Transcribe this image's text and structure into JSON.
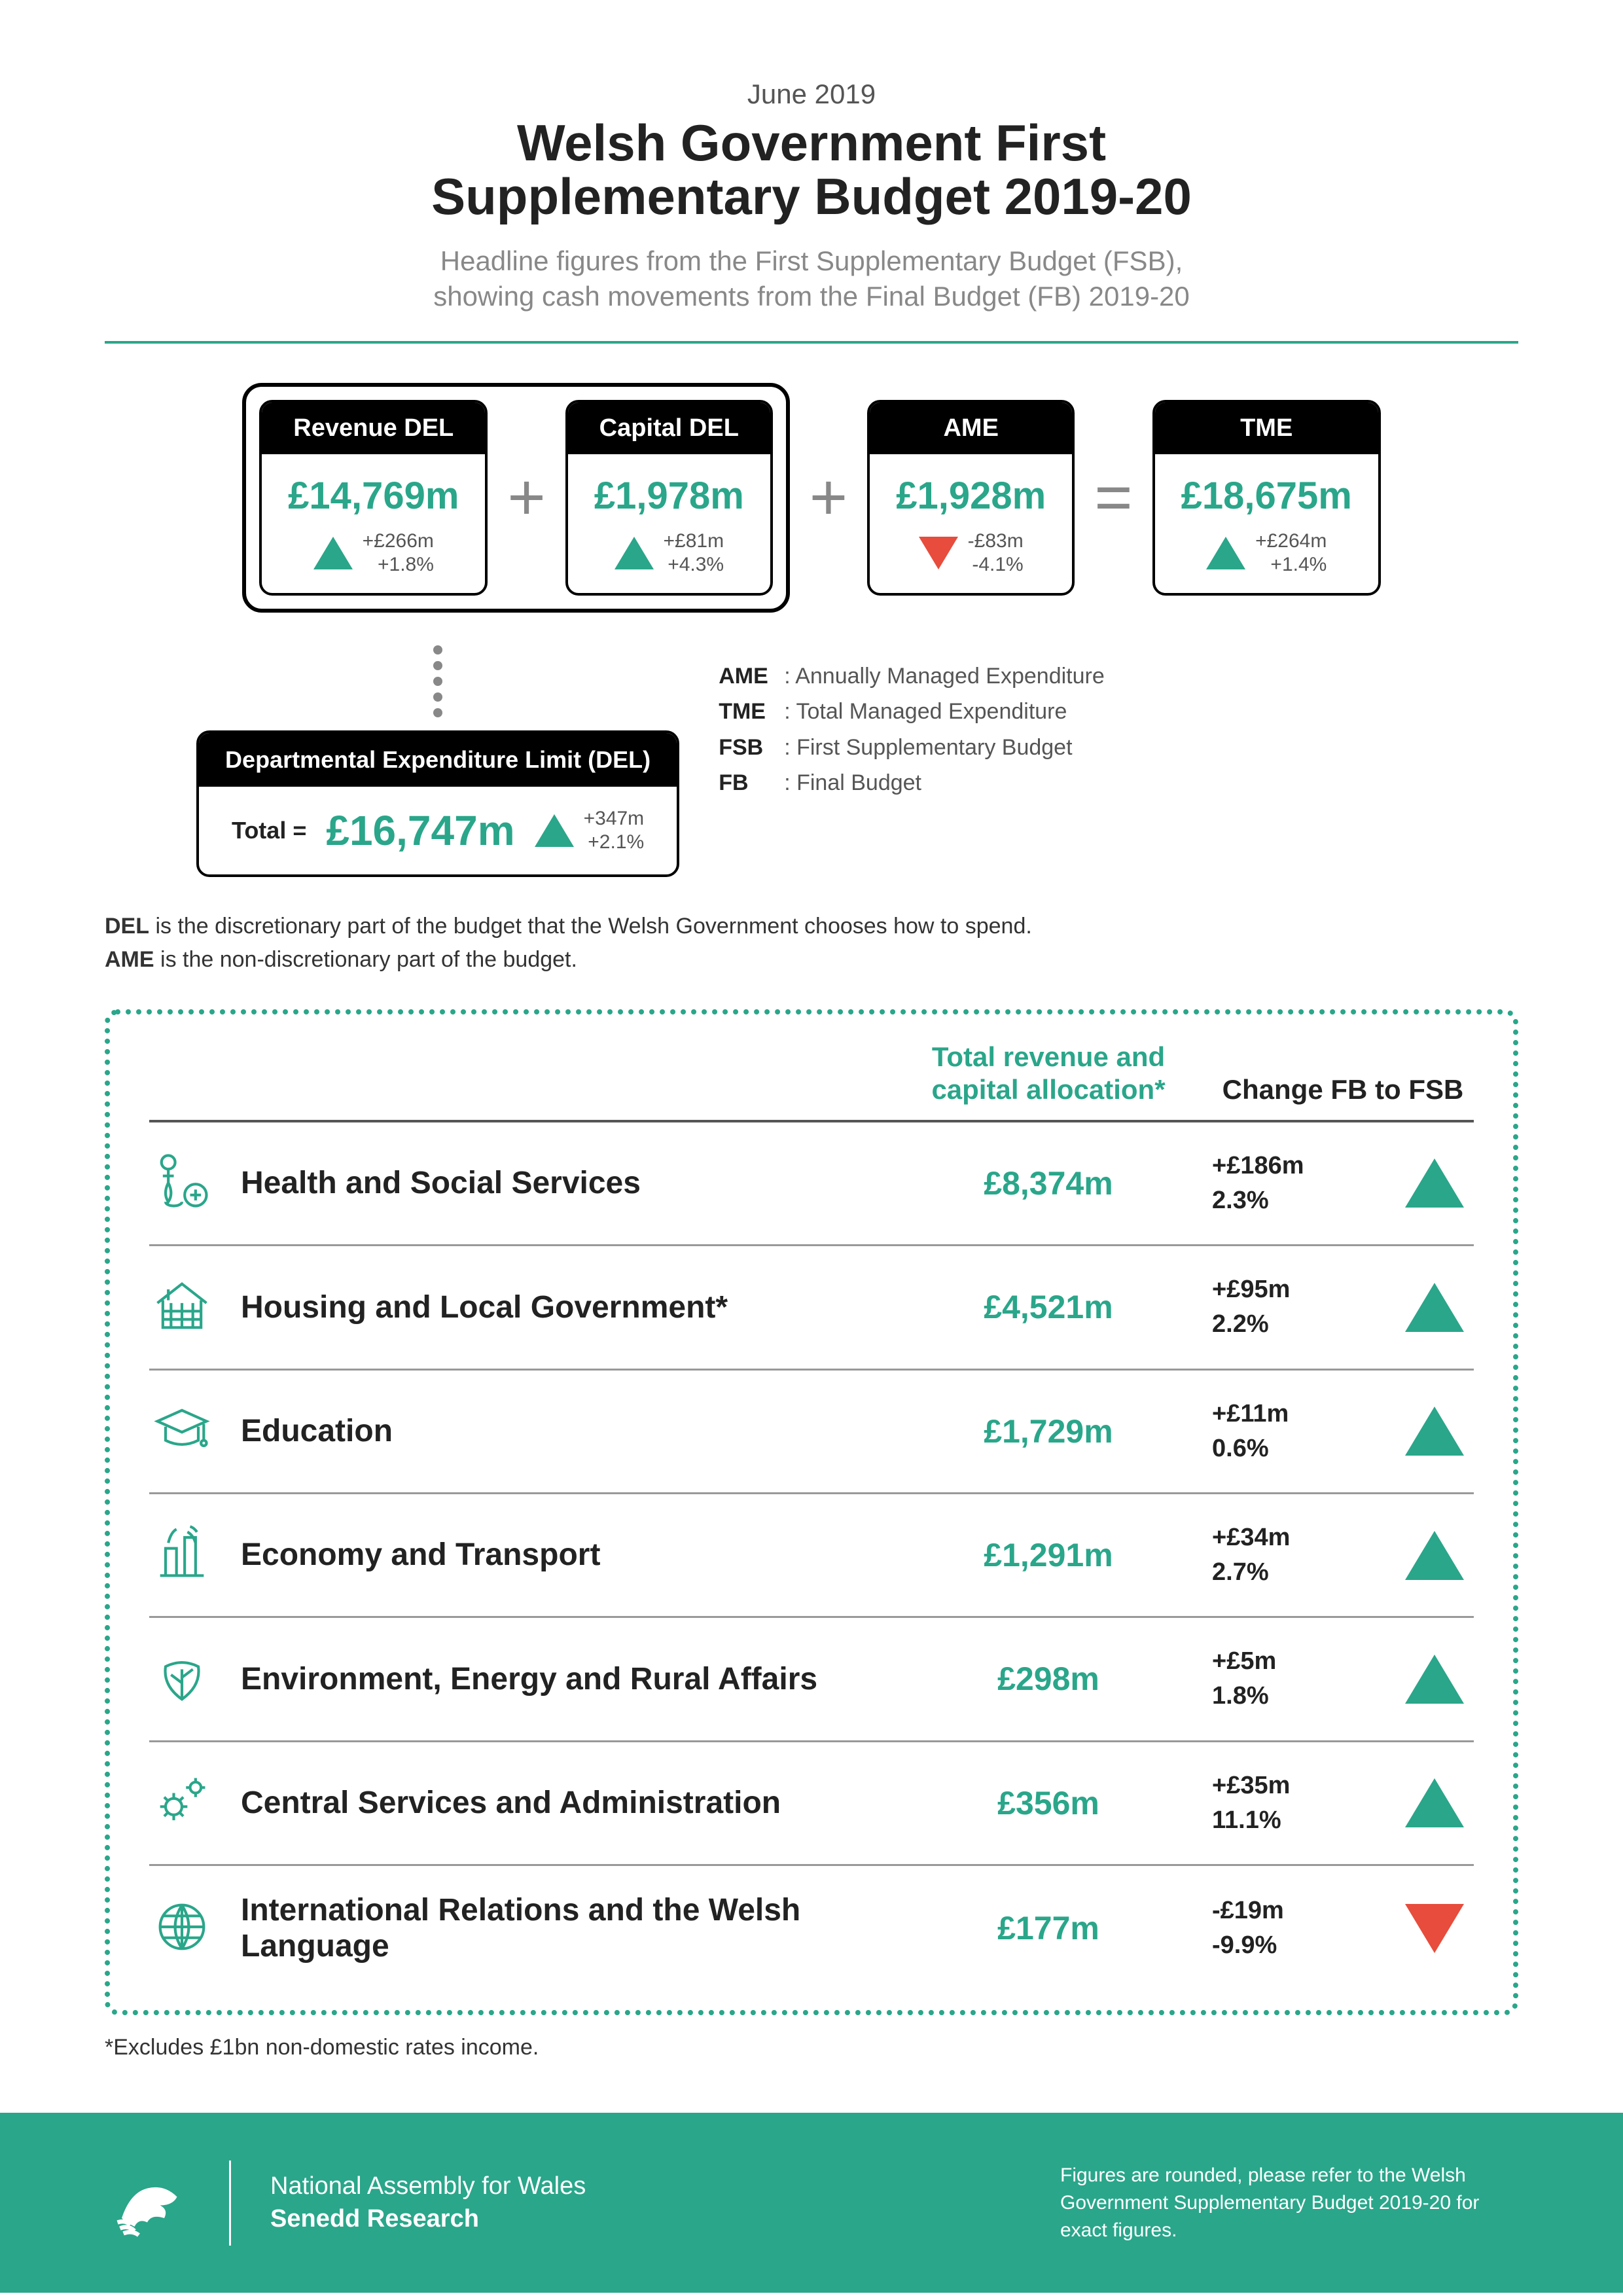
{
  "header": {
    "pretitle": "June 2019",
    "title_l1": "Welsh Government First",
    "title_l2": "Supplementary Budget 2019-20",
    "subtitle_l1": "Headline figures from the First Supplementary Budget (FSB),",
    "subtitle_l2": "showing cash movements from the Final Budget (FB) 2019-20"
  },
  "colors": {
    "teal": "#2aa68a",
    "red": "#e74c3c",
    "black": "#000000",
    "grey": "#888888"
  },
  "topboxes": {
    "revenue": {
      "label": "Revenue DEL",
      "amount": "£14,769m",
      "delta": "+£266m",
      "pct": "+1.8%",
      "dir": "up"
    },
    "capital": {
      "label": "Capital DEL",
      "amount": "£1,978m",
      "delta": "+£81m",
      "pct": "+4.3%",
      "dir": "up"
    },
    "ame": {
      "label": "AME",
      "amount": "£1,928m",
      "delta": "-£83m",
      "pct": "-4.1%",
      "dir": "down"
    },
    "tme": {
      "label": "TME",
      "amount": "£18,675m",
      "delta": "+£264m",
      "pct": "+1.4%",
      "dir": "up"
    }
  },
  "del": {
    "label": "Departmental Expenditure Limit (DEL)",
    "total_label": "Total =",
    "amount": "£16,747m",
    "delta": "+347m",
    "pct": "+2.1%"
  },
  "glossary": {
    "ame": "Annually Managed Expenditure",
    "tme": "Total Managed Expenditure",
    "fsb": "First Supplementary Budget",
    "fb": "Final Budget"
  },
  "notes": {
    "del": "DEL is the discretionary part of the budget that the Welsh Government chooses how to spend.",
    "ame": "AME is the non-discretionary part of the budget."
  },
  "table": {
    "head1": "Total revenue and capital allocation*",
    "head2": "Change FB to FSB",
    "rows": [
      {
        "name": "Health and Social Services",
        "alloc": "£8,374m",
        "delta": "+£186m",
        "pct": "2.3%",
        "dir": "up",
        "icon": "health"
      },
      {
        "name": "Housing and Local Government*",
        "alloc": "£4,521m",
        "delta": "+£95m",
        "pct": "2.2%",
        "dir": "up",
        "icon": "housing"
      },
      {
        "name": "Education",
        "alloc": "£1,729m",
        "delta": "+£11m",
        "pct": "0.6%",
        "dir": "up",
        "icon": "education"
      },
      {
        "name": "Economy and Transport",
        "alloc": "£1,291m",
        "delta": "+£34m",
        "pct": "2.7%",
        "dir": "up",
        "icon": "economy"
      },
      {
        "name": "Environment, Energy and Rural Affairs",
        "alloc": "£298m",
        "delta": "+£5m",
        "pct": "1.8%",
        "dir": "up",
        "icon": "environment"
      },
      {
        "name": "Central Services and Administration",
        "alloc": "£356m",
        "delta": "+£35m",
        "pct": "11.1%",
        "dir": "up",
        "icon": "central"
      },
      {
        "name": "International Relations and the Welsh Language",
        "alloc": "£177m",
        "delta": "-£19m",
        "pct": "-9.9%",
        "dir": "down",
        "icon": "international"
      }
    ],
    "footnote": "*Excludes £1bn non-domestic rates income."
  },
  "footer": {
    "org_l1": "National Assembly for Wales",
    "org_l2": "Senedd Research",
    "note": "Figures are rounded, please refer to the Welsh Government Supplementary Budget 2019-20 for exact figures."
  }
}
